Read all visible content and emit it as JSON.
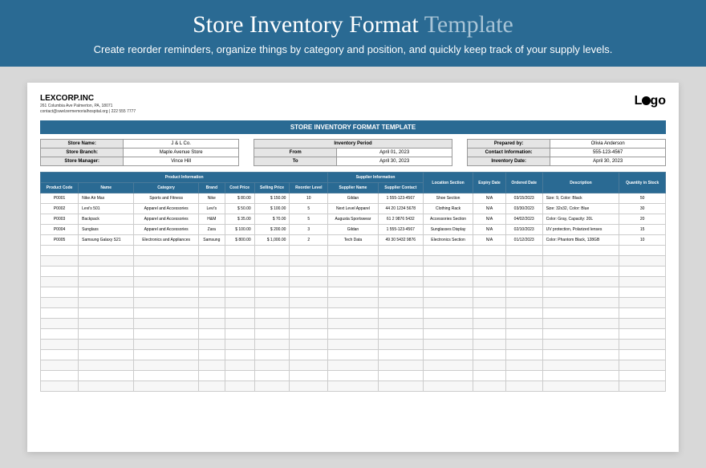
{
  "banner": {
    "title_main": "Store Inventory Format ",
    "title_accent": "Template",
    "subtitle": "Create reorder reminders, organize things by category and position, and quickly keep track of your supply levels."
  },
  "company": {
    "name": "LEXCORP.INC",
    "address": "261 Columbia Ave Palmerton, PA, 18071",
    "contact": "contact@swelzermemorialhospital.org | 222 555 7777"
  },
  "logo_text": "Lgo",
  "doc_title": "STORE INVENTORY FORMAT TEMPLATE",
  "store_info": {
    "labels": {
      "name": "Store Name:",
      "branch": "Store Branch:",
      "manager": "Store Manager:"
    },
    "values": {
      "name": "J & L Co.",
      "branch": "Maple Avenue Store",
      "manager": "Vince Hill"
    }
  },
  "period": {
    "header": "Inventory Period",
    "from_label": "From",
    "from_val": "April 01, 2023",
    "to_label": "To",
    "to_val": "April 30, 2023"
  },
  "prepared": {
    "labels": {
      "by": "Prepared by:",
      "contact": "Contact Information:",
      "date": "Inventory Date:"
    },
    "values": {
      "by": "Olivia Anderson",
      "contact": "555-123-4567",
      "date": "April 30, 2023"
    }
  },
  "table": {
    "group_headers": {
      "product": "Product Information",
      "supplier": "Supplier Information"
    },
    "headers": {
      "code": "Product Code",
      "name": "Name",
      "category": "Category",
      "brand": "Brand",
      "cost": "Cost Price",
      "selling": "Selling Price",
      "reorder": "Reorder Level",
      "sup_name": "Supplier Name",
      "sup_contact": "Supplier Contact",
      "location": "Location Section",
      "expiry": "Expiry Date",
      "ordered": "Ordered Date",
      "desc": "Description",
      "qty": "Quantity in Stock"
    },
    "rows": [
      {
        "code": "P0001",
        "name": "Nike Air Max",
        "category": "Sports and Fitness",
        "brand": "Nike",
        "cost": "80.00",
        "selling": "150.00",
        "reorder": "10",
        "sup_name": "Gildan",
        "sup_contact": "1 555-123-4567",
        "location": "Shoe Section",
        "expiry": "N/A",
        "ordered": "03/15/2023",
        "desc": "Size: 9, Color: Black",
        "qty": "50"
      },
      {
        "code": "P0002",
        "name": "Levi's 501",
        "category": "Apparel and Accessories",
        "brand": "Levi's",
        "cost": "50.00",
        "selling": "100.00",
        "reorder": "5",
        "sup_name": "Next Level Apparel",
        "sup_contact": "44 20 1234 5678",
        "location": "Clothing Rack",
        "expiry": "N/A",
        "ordered": "03/30/2023",
        "desc": "Size: 32x32, Color: Blue",
        "qty": "30"
      },
      {
        "code": "P0003",
        "name": "Backpack",
        "category": "Apparel and Accessories",
        "brand": "H&M",
        "cost": "35.00",
        "selling": "70.00",
        "reorder": "5",
        "sup_name": "Augusta Sportswear",
        "sup_contact": "61 2 9876 5432",
        "location": "Accessories Section",
        "expiry": "N/A",
        "ordered": "04/02/2023",
        "desc": "Color: Gray, Capacity: 20L",
        "qty": "20"
      },
      {
        "code": "P0004",
        "name": "Sunglass",
        "category": "Apparel and Accessories",
        "brand": "Zara",
        "cost": "100.00",
        "selling": "200.00",
        "reorder": "3",
        "sup_name": "Gildan",
        "sup_contact": "1 555-123-4567",
        "location": "Sunglasses Display",
        "expiry": "N/A",
        "ordered": "02/10/2023",
        "desc": "UV protection, Polarized lenses",
        "qty": "15"
      },
      {
        "code": "P0005",
        "name": "Samsung Galaxy S21",
        "category": "Electronics and Appliances",
        "brand": "Samsung",
        "cost": "800.00",
        "selling": "1,000.00",
        "reorder": "2",
        "sup_name": "Tech Data",
        "sup_contact": "49 30 5432 9876",
        "location": "Electronics Section",
        "expiry": "N/A",
        "ordered": "01/12/2023",
        "desc": "Color: Phantom Black, 128GB",
        "qty": "10"
      }
    ]
  },
  "colors": {
    "primary": "#2a6a93",
    "page_bg": "#d8d8d8",
    "header_cell": "#e5e5e5"
  }
}
